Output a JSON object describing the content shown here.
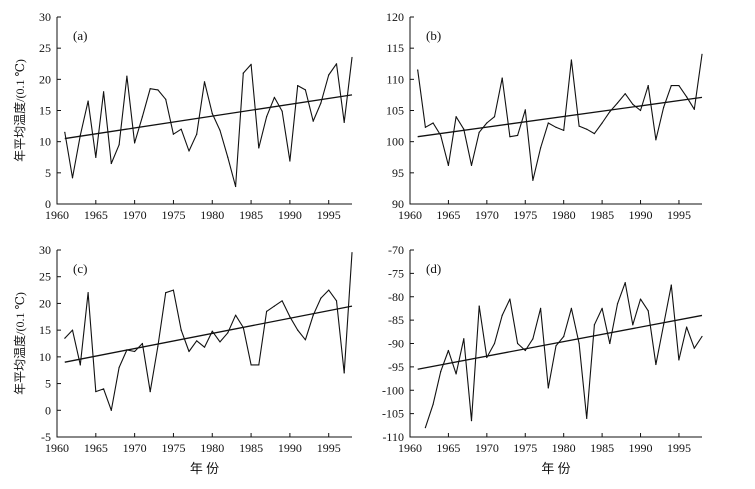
{
  "figure": {
    "ylabel": "年平均温度/(0.1 ℃)",
    "xlabel": "年 份"
  },
  "chart_data": [
    {
      "type": "line",
      "panel_label": "(a)",
      "xlim": [
        1960,
        1998
      ],
      "ylim": [
        0,
        30
      ],
      "xticks": [
        1960,
        1965,
        1970,
        1975,
        1980,
        1985,
        1990,
        1995
      ],
      "yticks": [
        0,
        5,
        10,
        15,
        20,
        25,
        30
      ],
      "xlabel": "",
      "ylabel": "年平均温度/(0.1 ℃)",
      "x": [
        1961,
        1962,
        1963,
        1964,
        1965,
        1966,
        1967,
        1968,
        1969,
        1970,
        1971,
        1972,
        1973,
        1974,
        1975,
        1976,
        1977,
        1978,
        1979,
        1980,
        1981,
        1982,
        1983,
        1984,
        1985,
        1986,
        1987,
        1988,
        1989,
        1990,
        1991,
        1992,
        1993,
        1994,
        1995,
        1996,
        1997,
        1998
      ],
      "series": [
        {
          "name": "annual",
          "values": [
            11.5,
            4.2,
            11.0,
            16.5,
            7.5,
            18.0,
            6.5,
            9.5,
            20.5,
            9.8,
            14.0,
            18.5,
            18.3,
            16.8,
            11.2,
            12.0,
            8.5,
            11.2,
            19.6,
            14.5,
            11.8,
            7.5,
            2.8,
            21.0,
            22.4,
            9.0,
            14.0,
            17.1,
            14.9,
            6.9,
            19.0,
            18.3,
            13.3,
            16.2,
            20.7,
            22.5,
            13.1,
            23.5
          ]
        },
        {
          "name": "trend",
          "x": [
            1961,
            1998
          ],
          "values": [
            10.5,
            17.5
          ]
        }
      ]
    },
    {
      "type": "line",
      "panel_label": "(b)",
      "xlim": [
        1960,
        1998
      ],
      "ylim": [
        90,
        120
      ],
      "xticks": [
        1960,
        1965,
        1970,
        1975,
        1980,
        1985,
        1990,
        1995
      ],
      "yticks": [
        90,
        95,
        100,
        105,
        110,
        115,
        120
      ],
      "xlabel": "",
      "ylabel": "",
      "x": [
        1961,
        1962,
        1963,
        1964,
        1965,
        1966,
        1967,
        1968,
        1969,
        1970,
        1971,
        1972,
        1973,
        1974,
        1975,
        1976,
        1977,
        1978,
        1979,
        1980,
        1981,
        1982,
        1983,
        1984,
        1985,
        1986,
        1987,
        1988,
        1989,
        1990,
        1991,
        1992,
        1993,
        1994,
        1995,
        1996,
        1997,
        1998
      ],
      "series": [
        {
          "name": "annual",
          "values": [
            111.5,
            102.3,
            103.0,
            101.0,
            96.2,
            104.0,
            102.0,
            96.2,
            101.5,
            103.0,
            104.0,
            110.2,
            100.8,
            101.0,
            105.1,
            93.8,
            99.0,
            103.0,
            102.3,
            101.8,
            113.1,
            102.5,
            102.0,
            101.3,
            103.0,
            104.8,
            106.2,
            107.7,
            106.0,
            105.0,
            109.0,
            100.3,
            105.5,
            109.0,
            109.0,
            107.2,
            105.2,
            114.0
          ]
        },
        {
          "name": "trend",
          "x": [
            1961,
            1998
          ],
          "values": [
            100.8,
            107.1
          ]
        }
      ]
    },
    {
      "type": "line",
      "panel_label": "(c)",
      "xlim": [
        1960,
        1998
      ],
      "ylim": [
        -5,
        30
      ],
      "xticks": [
        1960,
        1965,
        1970,
        1975,
        1980,
        1985,
        1990,
        1995
      ],
      "yticks": [
        -5,
        0,
        5,
        10,
        15,
        20,
        25,
        30
      ],
      "xlabel": "年 份",
      "ylabel": "年平均温度/(0.1 ℃)",
      "x": [
        1961,
        1962,
        1963,
        1964,
        1965,
        1966,
        1967,
        1968,
        1969,
        1970,
        1971,
        1972,
        1973,
        1974,
        1975,
        1976,
        1977,
        1978,
        1979,
        1980,
        1981,
        1982,
        1983,
        1984,
        1985,
        1986,
        1987,
        1988,
        1989,
        1990,
        1991,
        1992,
        1993,
        1994,
        1995,
        1996,
        1997,
        1998
      ],
      "series": [
        {
          "name": "annual",
          "values": [
            13.5,
            15.0,
            8.5,
            22.0,
            3.5,
            4.0,
            0.0,
            8.0,
            11.3,
            11.0,
            12.5,
            3.5,
            12.0,
            22.0,
            22.5,
            15.0,
            11.0,
            13.0,
            11.8,
            14.8,
            12.8,
            14.5,
            17.8,
            15.5,
            8.5,
            8.5,
            18.5,
            19.5,
            20.5,
            17.5,
            15.0,
            13.2,
            17.8,
            21.0,
            22.5,
            20.5,
            7.0,
            29.5
          ]
        },
        {
          "name": "trend",
          "x": [
            1961,
            1998
          ],
          "values": [
            9.0,
            19.5
          ]
        }
      ]
    },
    {
      "type": "line",
      "panel_label": "(d)",
      "xlim": [
        1960,
        1998
      ],
      "ylim": [
        -110,
        -70
      ],
      "xticks": [
        1960,
        1965,
        1970,
        1975,
        1980,
        1985,
        1990,
        1995
      ],
      "yticks": [
        -110,
        -105,
        -100,
        -95,
        -90,
        -85,
        -80,
        -75,
        -70
      ],
      "xlabel": "年 份",
      "ylabel": "",
      "x": [
        1962,
        1963,
        1964,
        1965,
        1966,
        1967,
        1968,
        1969,
        1970,
        1971,
        1972,
        1973,
        1974,
        1975,
        1976,
        1977,
        1978,
        1979,
        1980,
        1981,
        1982,
        1983,
        1984,
        1985,
        1986,
        1987,
        1988,
        1989,
        1990,
        1991,
        1992,
        1993,
        1994,
        1995,
        1996,
        1997,
        1998
      ],
      "series": [
        {
          "name": "annual",
          "values": [
            -108.0,
            -103.0,
            -96.0,
            -91.5,
            -96.5,
            -89.0,
            -106.5,
            -82.0,
            -93.0,
            -90.0,
            -84.0,
            -80.5,
            -90.0,
            -91.5,
            -89.0,
            -82.5,
            -99.5,
            -90.5,
            -88.5,
            -82.5,
            -90.0,
            -106.0,
            -86.0,
            -82.5,
            -90.0,
            -81.5,
            -77.0,
            -86.0,
            -80.5,
            -83.0,
            -94.5,
            -86.0,
            -77.5,
            -93.5,
            -86.5,
            -91.0,
            -88.5
          ]
        },
        {
          "name": "trend",
          "x": [
            1961,
            1998
          ],
          "values": [
            -95.5,
            -84.0
          ]
        }
      ]
    }
  ]
}
